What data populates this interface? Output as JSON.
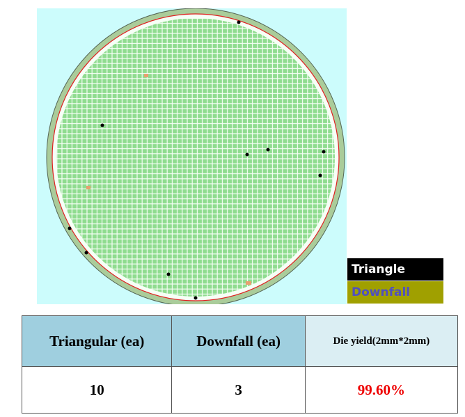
{
  "legend": {
    "items": [
      "Triangle",
      "Downfall"
    ]
  },
  "table": {
    "header": [
      "Triangular (ea)",
      "Downfall (ea)",
      "Die yield(2mm*2mm)"
    ],
    "rows": [
      [
        "10",
        "3",
        "99.60%"
      ]
    ]
  }
}
